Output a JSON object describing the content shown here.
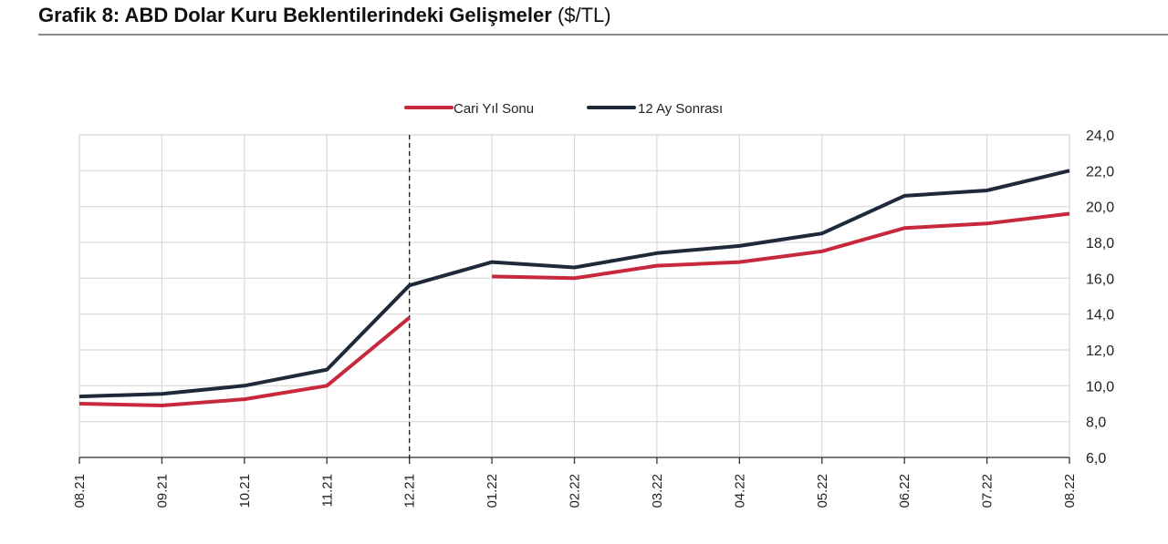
{
  "header": {
    "title_bold": "Grafik 8: ABD Dolar Kuru Beklentilerindeki Gelişmeler",
    "title_unit": "($/TL)"
  },
  "legend": {
    "items": [
      {
        "label": "Cari Yıl Sonu",
        "color": "#c8283c"
      },
      {
        "label": "12 Ay Sonrası",
        "color": "#1e2a3a"
      }
    ]
  },
  "chart_data": {
    "type": "line",
    "title": "Grafik 8: ABD Dolar Kuru Beklentilerindeki Gelişmeler ($/TL)",
    "xlabel": "",
    "ylabel": "$/TL",
    "categories": [
      "08.21",
      "09.21",
      "10.21",
      "11.21",
      "12.21",
      "01.22",
      "02.22",
      "03.22",
      "04.22",
      "05.22",
      "06.22",
      "07.22",
      "08.22"
    ],
    "series": [
      {
        "name": "Cari Yıl Sonu",
        "color": "#c8283c",
        "values": [
          9.0,
          8.9,
          9.25,
          10.0,
          13.8,
          16.1,
          16.0,
          16.7,
          16.9,
          17.5,
          18.8,
          19.05,
          19.6
        ],
        "break_after_index": 4
      },
      {
        "name": "12 Ay Sonrası",
        "color": "#1e2a3a",
        "values": [
          9.4,
          9.55,
          10.0,
          10.9,
          15.6,
          16.9,
          16.6,
          17.4,
          17.8,
          18.5,
          20.6,
          20.9,
          22.0
        ]
      }
    ],
    "ylim": [
      6.0,
      24.0
    ],
    "yticks": [
      "6,0",
      "8,0",
      "10,0",
      "12,0",
      "14,0",
      "16,0",
      "18,0",
      "20,0",
      "22,0",
      "24,0"
    ],
    "yaxis_position": "right",
    "grid": true,
    "legend_position": "top",
    "annotations": [
      {
        "type": "vertical-dashed-line",
        "at": "12.21"
      }
    ]
  }
}
